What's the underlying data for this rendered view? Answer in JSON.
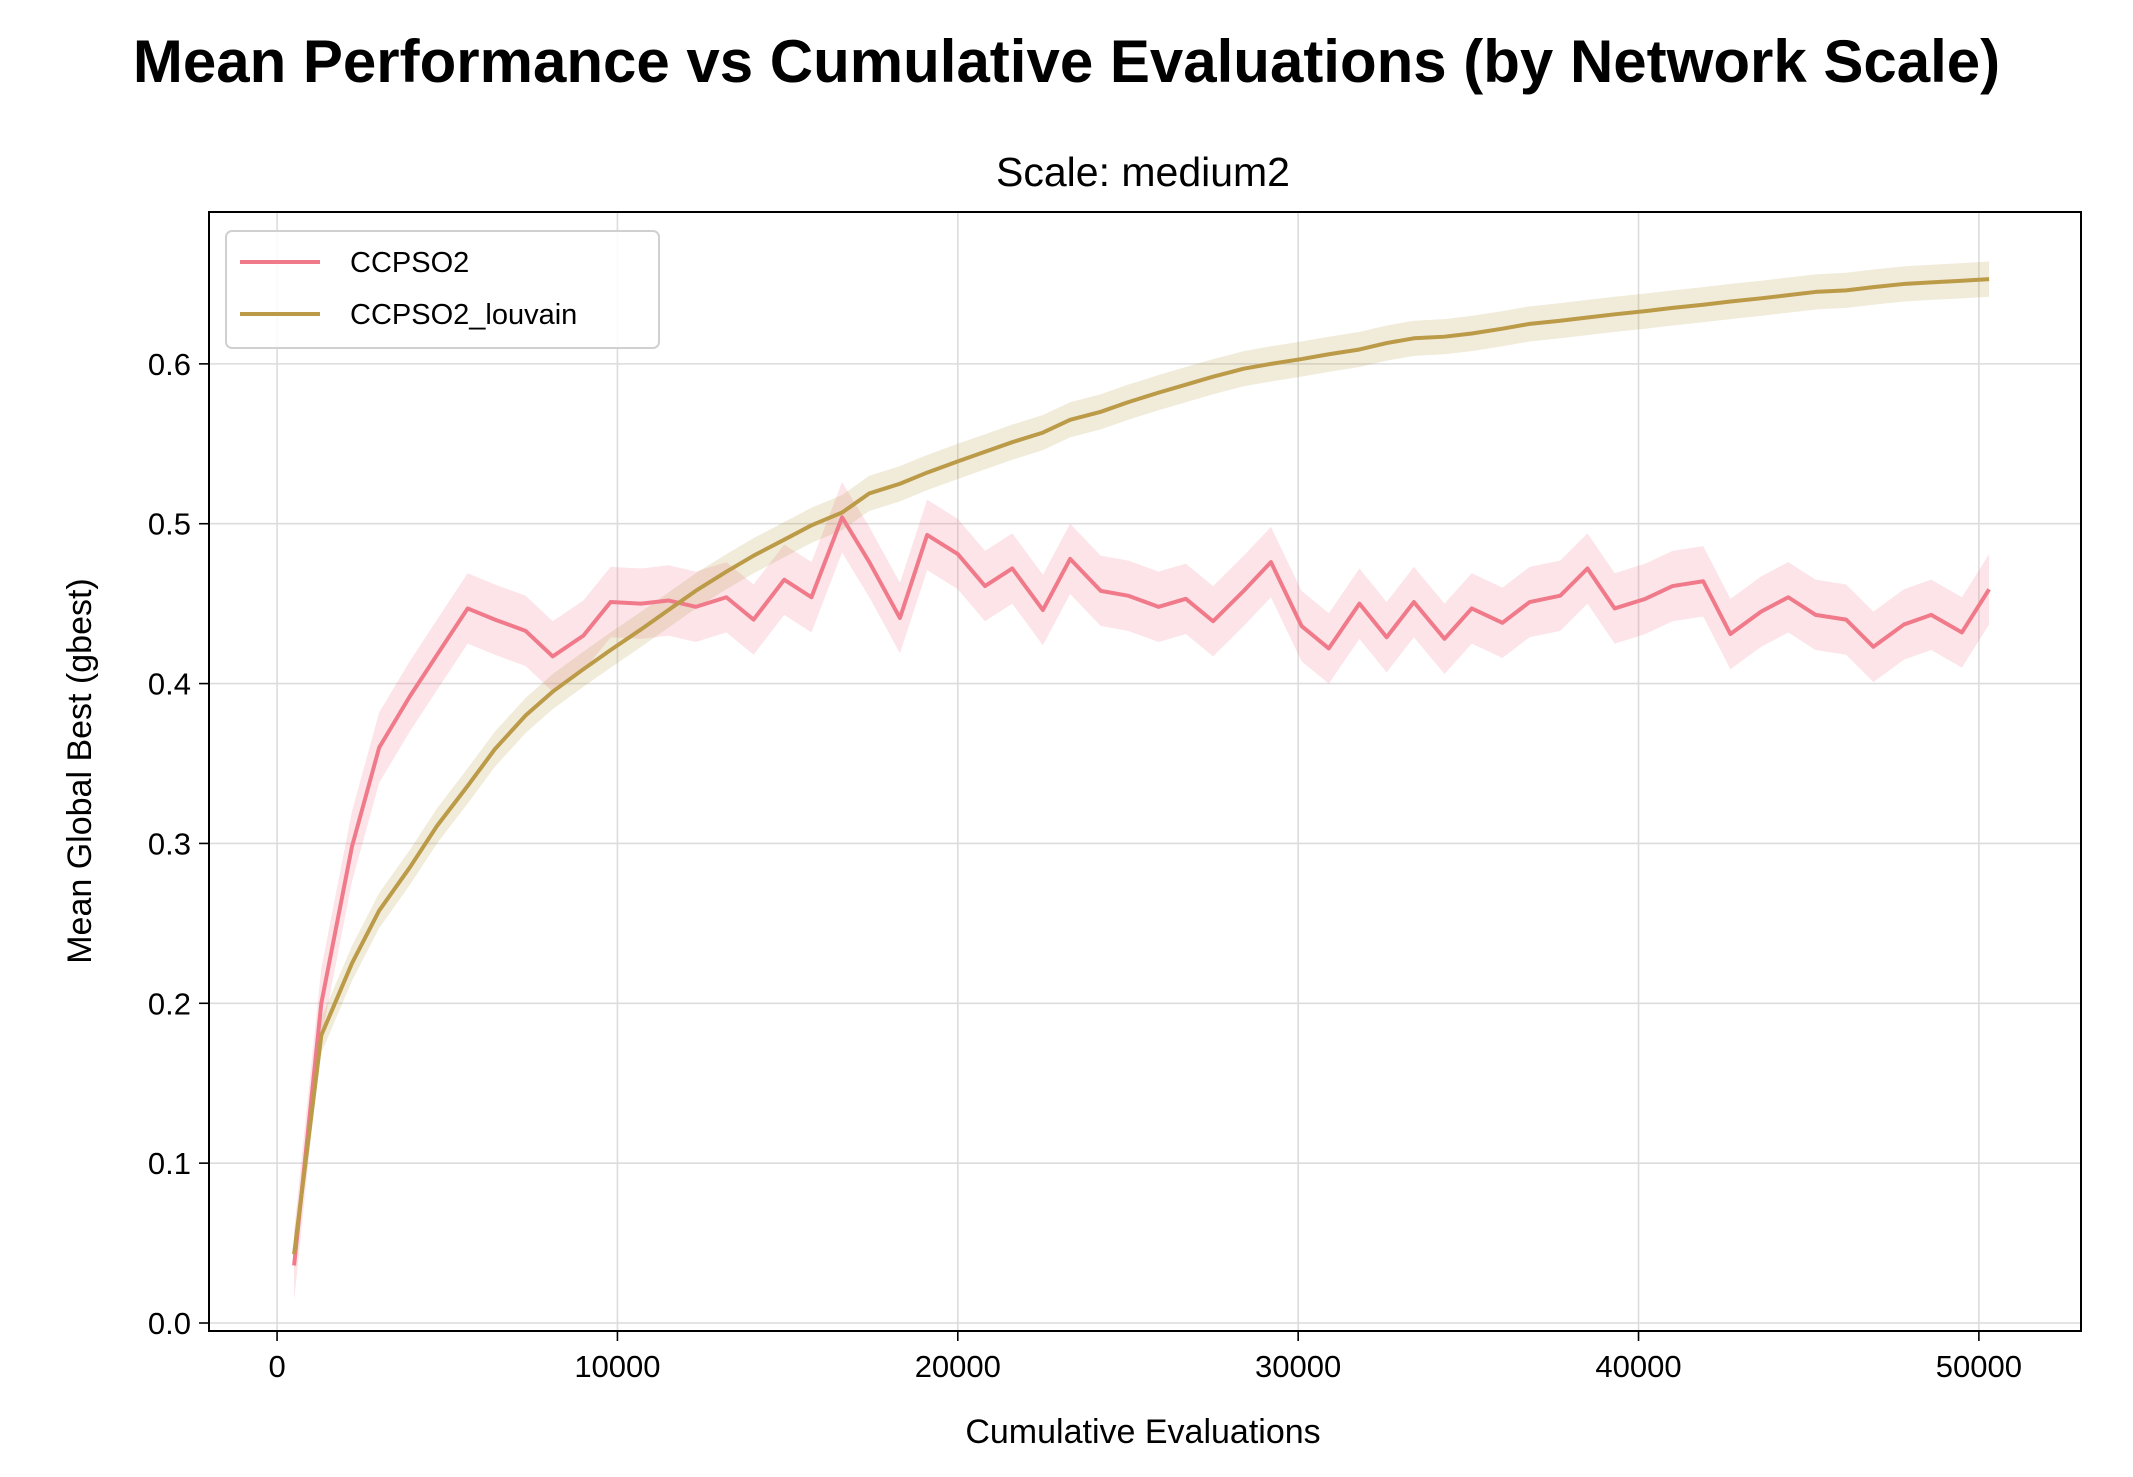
{
  "figure": {
    "suptitle": "Mean Performance vs Cumulative Evaluations (by Network Scale)"
  },
  "chart_data": {
    "type": "line",
    "title": "Scale: medium2",
    "xlabel": "Cumulative Evaluations",
    "ylabel": "Mean Global Best (gbest)",
    "xlim": [
      -2000,
      53000
    ],
    "ylim": [
      -0.005,
      0.695
    ],
    "xticks": [
      0,
      10000,
      20000,
      30000,
      40000,
      50000
    ],
    "yticks": [
      0.0,
      0.1,
      0.2,
      0.3,
      0.4,
      0.5,
      0.6
    ],
    "xtick_labels": [
      "0",
      "10000",
      "20000",
      "30000",
      "40000",
      "50000"
    ],
    "ytick_labels": [
      "0.0",
      "0.1",
      "0.2",
      "0.3",
      "0.4",
      "0.5",
      "0.6"
    ],
    "grid": true,
    "legend_position": "top-left",
    "series": [
      {
        "name": "CCPSO2",
        "color": "#f07a8a",
        "x": [
          500,
          1300,
          2200,
          3000,
          3900,
          4700,
          5600,
          6400,
          7300,
          8100,
          9000,
          9800,
          10700,
          11500,
          12300,
          13200,
          14000,
          14900,
          15700,
          16600,
          17400,
          18300,
          19100,
          20000,
          20800,
          21600,
          22500,
          23300,
          24200,
          25000,
          25900,
          26700,
          27500,
          28400,
          29200,
          30100,
          30900,
          31800,
          32600,
          33400,
          34300,
          35100,
          36000,
          36800,
          37700,
          38500,
          39300,
          40200,
          41000,
          41900,
          42700,
          43600,
          44400,
          45200,
          46100,
          46900,
          47800,
          48600,
          49500,
          50300
        ],
        "y": [
          0.036,
          0.2,
          0.298,
          0.36,
          0.392,
          0.418,
          0.447,
          0.44,
          0.433,
          0.417,
          0.43,
          0.451,
          0.45,
          0.452,
          0.448,
          0.454,
          0.44,
          0.465,
          0.454,
          0.504,
          0.476,
          0.441,
          0.493,
          0.481,
          0.461,
          0.472,
          0.446,
          0.478,
          0.458,
          0.455,
          0.448,
          0.453,
          0.439,
          0.458,
          0.476,
          0.436,
          0.422,
          0.45,
          0.429,
          0.451,
          0.428,
          0.447,
          0.438,
          0.451,
          0.455,
          0.472,
          0.447,
          0.453,
          0.461,
          0.464,
          0.431,
          0.445,
          0.454,
          0.443,
          0.44,
          0.423,
          0.437,
          0.443,
          0.432,
          0.459
        ],
        "band": 0.022
      },
      {
        "name": "CCPSO2_louvain",
        "color": "#bb9a48",
        "x": [
          500,
          1300,
          2200,
          3000,
          3900,
          4700,
          5600,
          6400,
          7300,
          8100,
          9000,
          9800,
          10700,
          11500,
          12300,
          13200,
          14000,
          14900,
          15700,
          16600,
          17400,
          18300,
          19100,
          20000,
          20800,
          21600,
          22500,
          23300,
          24200,
          25000,
          25900,
          26700,
          27500,
          28400,
          29200,
          30100,
          30900,
          31800,
          32600,
          33400,
          34300,
          35100,
          36000,
          36800,
          37700,
          38500,
          39300,
          40200,
          41000,
          41900,
          42700,
          43600,
          44400,
          45200,
          46100,
          46900,
          47800,
          48600,
          49500,
          50300
        ],
        "y": [
          0.043,
          0.18,
          0.225,
          0.258,
          0.285,
          0.311,
          0.336,
          0.359,
          0.38,
          0.395,
          0.409,
          0.421,
          0.434,
          0.446,
          0.458,
          0.47,
          0.48,
          0.49,
          0.499,
          0.507,
          0.519,
          0.525,
          0.532,
          0.539,
          0.545,
          0.551,
          0.557,
          0.565,
          0.57,
          0.576,
          0.582,
          0.587,
          0.592,
          0.597,
          0.6,
          0.603,
          0.606,
          0.609,
          0.613,
          0.616,
          0.617,
          0.619,
          0.622,
          0.625,
          0.627,
          0.629,
          0.631,
          0.633,
          0.635,
          0.637,
          0.639,
          0.641,
          0.643,
          0.645,
          0.646,
          0.648,
          0.65,
          0.651,
          0.652,
          0.653
        ],
        "band": 0.011
      }
    ]
  }
}
